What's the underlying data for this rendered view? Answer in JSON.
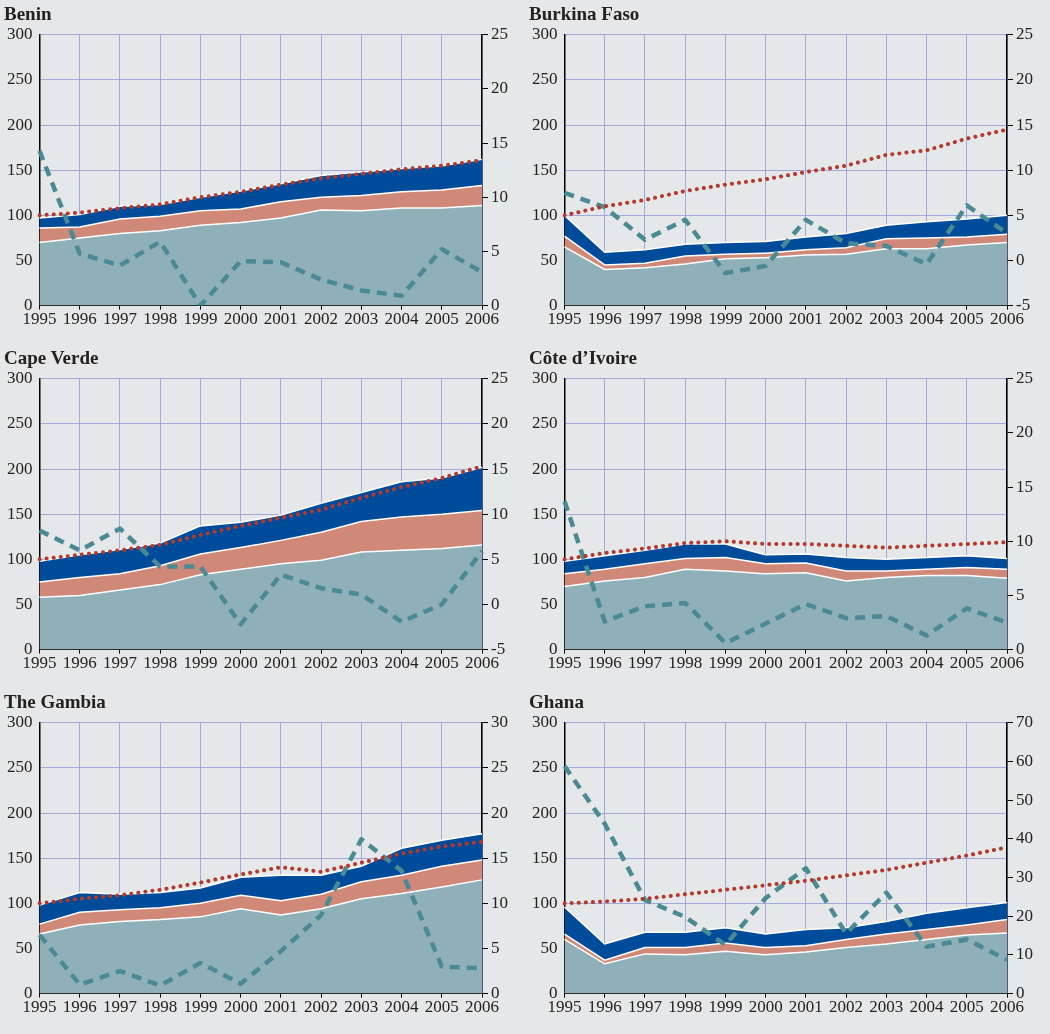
{
  "chart_data": [
    {
      "type": "area",
      "title": "Benin",
      "stacked": true,
      "grid": true,
      "marker": "none",
      "categories": [
        "1995",
        "1996",
        "1997",
        "1998",
        "1999",
        "2000",
        "2001",
        "2002",
        "2003",
        "2004",
        "2005",
        "2006"
      ],
      "ylim": [
        0,
        300
      ],
      "yticks": [
        0,
        50,
        100,
        150,
        200,
        250,
        300
      ],
      "y2lim": [
        0,
        25
      ],
      "y2ticks": [
        0,
        5,
        10,
        15,
        20,
        25
      ],
      "series": [
        {
          "color": "#8fb0b8",
          "values": [
            70,
            75,
            80,
            83,
            89,
            92,
            97,
            106,
            105,
            108,
            108,
            111
          ]
        },
        {
          "color": "#d08878",
          "values": [
            16,
            12,
            16,
            16,
            16,
            15,
            18,
            14,
            17,
            18,
            20,
            22
          ]
        },
        {
          "color": "#004c9b",
          "values": [
            11,
            14,
            14,
            13,
            15,
            20,
            20,
            24,
            26,
            26,
            27,
            29
          ]
        },
        {
          "type": "line",
          "color": "#b03a2e",
          "line_style": "dotted",
          "values": [
            100,
            103,
            108,
            112,
            120,
            126,
            134,
            141,
            146,
            151,
            155,
            161
          ]
        },
        {
          "type": "line",
          "axis": "y2",
          "color": "#4a8a94",
          "line_style": "dashed",
          "values": [
            14.3,
            4.8,
            3.7,
            5.9,
            0,
            4.1,
            4.0,
            2.4,
            1.4,
            0.9,
            5.2,
            3.1
          ]
        }
      ]
    },
    {
      "type": "area",
      "title": "Burkina Faso",
      "stacked": true,
      "grid": true,
      "marker": "none",
      "categories": [
        "1995",
        "1996",
        "1997",
        "1998",
        "1999",
        "2000",
        "2001",
        "2002",
        "2003",
        "2004",
        "2005",
        "2006"
      ],
      "ylim": [
        0,
        300
      ],
      "yticks": [
        0,
        50,
        100,
        150,
        200,
        250,
        300
      ],
      "y2lim": [
        -5,
        25
      ],
      "y2ticks": [
        -5,
        0,
        5,
        10,
        15,
        20,
        25
      ],
      "series": [
        {
          "color": "#8fb0b8",
          "values": [
            65,
            40,
            42,
            46,
            52,
            53,
            56,
            57,
            63,
            63,
            67,
            70
          ]
        },
        {
          "color": "#d08878",
          "values": [
            12,
            5,
            5,
            9,
            5,
            5,
            6,
            7,
            11,
            12,
            9,
            9
          ]
        },
        {
          "color": "#004c9b",
          "values": [
            23,
            14,
            15,
            13,
            13,
            13,
            14,
            16,
            15,
            18,
            20,
            21
          ]
        },
        {
          "type": "line",
          "color": "#b03a2e",
          "line_style": "dotted",
          "values": [
            100,
            110,
            117,
            127,
            134,
            140,
            148,
            155,
            167,
            172,
            185,
            195
          ]
        },
        {
          "type": "line",
          "axis": "y2",
          "color": "#4a8a94",
          "line_style": "dashed",
          "values": [
            7.5,
            5.9,
            2.3,
            4.5,
            -1.4,
            -0.6,
            4.5,
            1.9,
            1.6,
            -0.4,
            6.1,
            3.0
          ]
        }
      ]
    },
    {
      "type": "area",
      "title": "Cape Verde",
      "stacked": true,
      "grid": true,
      "marker": "none",
      "categories": [
        "1995",
        "1996",
        "1997",
        "1998",
        "1999",
        "2000",
        "2001",
        "2002",
        "2003",
        "2004",
        "2005",
        "2006"
      ],
      "ylim": [
        0,
        300
      ],
      "yticks": [
        0,
        50,
        100,
        150,
        200,
        250,
        300
      ],
      "y2lim": [
        -5,
        25
      ],
      "y2ticks": [
        -5,
        0,
        5,
        10,
        15,
        20,
        25
      ],
      "series": [
        {
          "color": "#8fb0b8",
          "values": [
            58,
            60,
            66,
            72,
            83,
            89,
            95,
            99,
            108,
            110,
            112,
            116
          ]
        },
        {
          "color": "#d08878",
          "values": [
            17,
            20,
            18,
            21,
            23,
            24,
            26,
            31,
            34,
            37,
            38,
            38
          ]
        },
        {
          "color": "#004c9b",
          "values": [
            23,
            25,
            27,
            25,
            31,
            28,
            28,
            32,
            32,
            39,
            40,
            48
          ]
        },
        {
          "type": "line",
          "color": "#b03a2e",
          "line_style": "dotted",
          "values": [
            100,
            105,
            110,
            116,
            127,
            137,
            146,
            155,
            168,
            180,
            190,
            203
          ]
        },
        {
          "type": "line",
          "axis": "y2",
          "color": "#4a8a94",
          "line_style": "dashed",
          "values": [
            8.2,
            6.0,
            8.4,
            4.2,
            4.2,
            -2.2,
            3.3,
            1.8,
            1.1,
            -1.9,
            0,
            5.9
          ]
        }
      ]
    },
    {
      "type": "area",
      "title": "Côte d’Ivoire",
      "stacked": true,
      "grid": true,
      "marker": "none",
      "categories": [
        "1995",
        "1996",
        "1997",
        "1998",
        "1999",
        "2000",
        "2001",
        "2002",
        "2003",
        "2004",
        "2005",
        "2006"
      ],
      "ylim": [
        0,
        300
      ],
      "yticks": [
        0,
        50,
        100,
        150,
        200,
        250,
        300
      ],
      "y2lim": [
        0,
        25
      ],
      "y2ticks": [
        0,
        5,
        10,
        15,
        20,
        25
      ],
      "series": [
        {
          "color": "#8fb0b8",
          "values": [
            70,
            76,
            80,
            89,
            87,
            84,
            85,
            76,
            80,
            82,
            82,
            79
          ]
        },
        {
          "color": "#d08878",
          "values": [
            14,
            13,
            15,
            12,
            15,
            11,
            11,
            11,
            7,
            7,
            9,
            10
          ]
        },
        {
          "color": "#004c9b",
          "values": [
            14,
            15,
            15,
            16,
            15,
            10,
            10,
            15,
            13,
            13,
            13,
            12
          ]
        },
        {
          "type": "line",
          "color": "#b03a2e",
          "line_style": "dotted",
          "values": [
            100,
            107,
            112,
            118,
            120,
            117,
            117,
            115,
            113,
            115,
            117,
            119
          ]
        },
        {
          "type": "line",
          "axis": "y2",
          "color": "#4a8a94",
          "line_style": "dashed",
          "values": [
            13.7,
            2.6,
            4.0,
            4.3,
            0.6,
            2.4,
            4.2,
            2.9,
            3.1,
            1.3,
            3.8,
            2.5
          ]
        }
      ]
    },
    {
      "type": "area",
      "title": "The Gambia",
      "stacked": true,
      "grid": true,
      "marker": "none",
      "categories": [
        "1995",
        "1996",
        "1997",
        "1998",
        "1999",
        "2000",
        "2001",
        "2002",
        "2003",
        "2004",
        "2005",
        "2006"
      ],
      "ylim": [
        0,
        300
      ],
      "yticks": [
        0,
        50,
        100,
        150,
        200,
        250,
        300
      ],
      "y2lim": [
        0,
        30
      ],
      "y2ticks": [
        0,
        5,
        10,
        15,
        20,
        25,
        30
      ],
      "series": [
        {
          "color": "#8fb0b8",
          "values": [
            66,
            76,
            80,
            82,
            85,
            94,
            87,
            94,
            105,
            111,
            118,
            126
          ]
        },
        {
          "color": "#d08878",
          "values": [
            11,
            14,
            13,
            13,
            15,
            15,
            16,
            16,
            19,
            20,
            23,
            22
          ]
        },
        {
          "color": "#004c9b",
          "values": [
            21,
            22,
            17,
            17,
            17,
            20,
            28,
            21,
            17,
            30,
            29,
            29
          ]
        },
        {
          "type": "line",
          "color": "#b03a2e",
          "line_style": "dotted",
          "values": [
            100,
            105,
            109,
            115,
            123,
            132,
            140,
            135,
            145,
            155,
            163,
            168
          ]
        },
        {
          "type": "line",
          "axis": "y2",
          "color": "#4a8a94",
          "line_style": "dashed",
          "values": [
            6.5,
            1.0,
            2.5,
            0.9,
            3.4,
            1.1,
            4.7,
            8.7,
            17.1,
            13.6,
            3.0,
            2.8
          ]
        }
      ]
    },
    {
      "type": "area",
      "title": "Ghana",
      "stacked": true,
      "grid": true,
      "marker": "none",
      "categories": [
        "1995",
        "1996",
        "1997",
        "1998",
        "1999",
        "2000",
        "2001",
        "2002",
        "2003",
        "2004",
        "2005",
        "2006"
      ],
      "ylim": [
        0,
        300
      ],
      "yticks": [
        0,
        50,
        100,
        150,
        200,
        250,
        300
      ],
      "y2lim": [
        0,
        70
      ],
      "y2ticks": [
        0,
        10,
        20,
        30,
        40,
        50,
        60,
        70
      ],
      "series": [
        {
          "color": "#8fb0b8",
          "values": [
            60,
            33,
            44,
            43,
            47,
            43,
            46,
            51,
            55,
            60,
            65,
            67
          ]
        },
        {
          "color": "#d08878",
          "values": [
            6,
            4,
            7,
            8,
            9,
            8,
            7,
            9,
            11,
            11,
            11,
            15
          ]
        },
        {
          "color": "#004c9b",
          "values": [
            30,
            18,
            17,
            17,
            17,
            15,
            18,
            13,
            14,
            18,
            19,
            19
          ]
        },
        {
          "type": "line",
          "color": "#b03a2e",
          "line_style": "dotted",
          "values": [
            100,
            102,
            105,
            110,
            115,
            120,
            125,
            131,
            137,
            145,
            153,
            162
          ]
        },
        {
          "type": "line",
          "axis": "y2",
          "color": "#4a8a94",
          "line_style": "dashed",
          "values": [
            58.8,
            43.9,
            24.2,
            19.8,
            12.6,
            24.7,
            32.4,
            15.5,
            26.1,
            12.1,
            14.0,
            8.7
          ]
        }
      ]
    }
  ]
}
